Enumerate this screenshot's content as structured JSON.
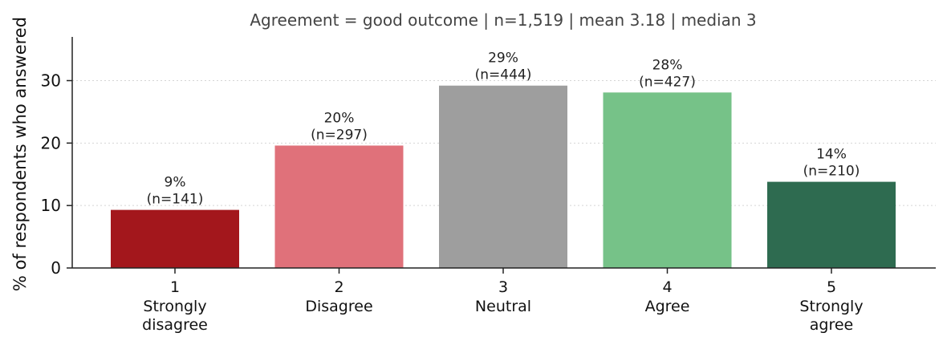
{
  "chart_data": {
    "type": "bar",
    "title": "Agreement = good outcome   |   n=1,519   |   mean 3.18   |   median 3",
    "xlabel": "",
    "ylabel": "% of respondents who answered",
    "ylim": [
      0,
      37
    ],
    "yticks": [
      0,
      10,
      20,
      30
    ],
    "grid": true,
    "categories": [
      {
        "code": "1",
        "label_lines": [
          "Strongly",
          "disagree"
        ]
      },
      {
        "code": "2",
        "label_lines": [
          "Disagree"
        ]
      },
      {
        "code": "3",
        "label_lines": [
          "Neutral"
        ]
      },
      {
        "code": "4",
        "label_lines": [
          "Agree"
        ]
      },
      {
        "code": "5",
        "label_lines": [
          "Strongly",
          "agree"
        ]
      }
    ],
    "values": [
      9.3,
      19.6,
      29.2,
      28.1,
      13.8
    ],
    "data_labels": [
      {
        "pct": "9%",
        "n": "(n=141)"
      },
      {
        "pct": "20%",
        "n": "(n=297)"
      },
      {
        "pct": "29%",
        "n": "(n=444)"
      },
      {
        "pct": "28%",
        "n": "(n=427)"
      },
      {
        "pct": "14%",
        "n": "(n=210)"
      }
    ],
    "colors": [
      "#a3171c",
      "#e0717a",
      "#9e9e9e",
      "#76c288",
      "#2e6b50"
    ]
  }
}
